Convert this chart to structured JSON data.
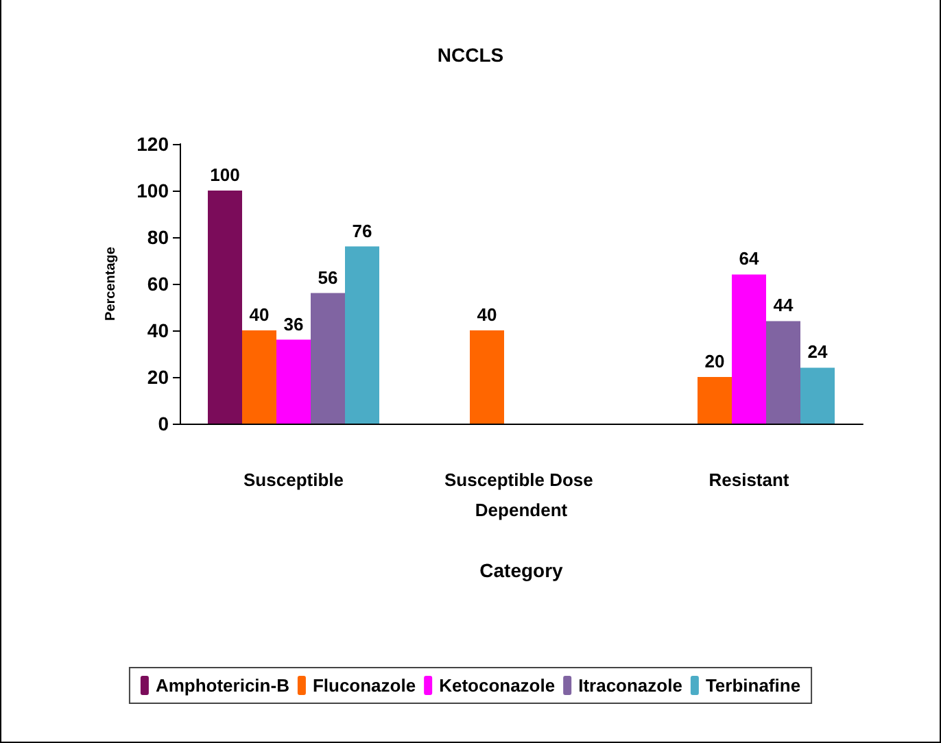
{
  "chart_data": {
    "type": "bar",
    "title": "NCCLS",
    "xlabel": "Category",
    "ylabel": "Percentage",
    "categories": [
      "Susceptible",
      "Susceptible Dose Dependent",
      "Resistant"
    ],
    "series": [
      {
        "name": "Amphotericin-B",
        "color": "#7b0c5a",
        "values": [
          100,
          null,
          null
        ]
      },
      {
        "name": "Fluconazole",
        "color": "#ff6600",
        "values": [
          40,
          40,
          20
        ]
      },
      {
        "name": "Ketoconazole",
        "color": "#ff00ff",
        "values": [
          36,
          null,
          64
        ]
      },
      {
        "name": "Itraconazole",
        "color": "#8064a2",
        "values": [
          56,
          null,
          44
        ]
      },
      {
        "name": "Terbinafine",
        "color": "#4bacc6",
        "values": [
          76,
          null,
          24
        ]
      }
    ],
    "ylim": [
      0,
      120
    ],
    "yticks": [
      0,
      20,
      40,
      60,
      80,
      100,
      120
    ],
    "grid": false,
    "legend": "bottom",
    "data_labels": true
  }
}
